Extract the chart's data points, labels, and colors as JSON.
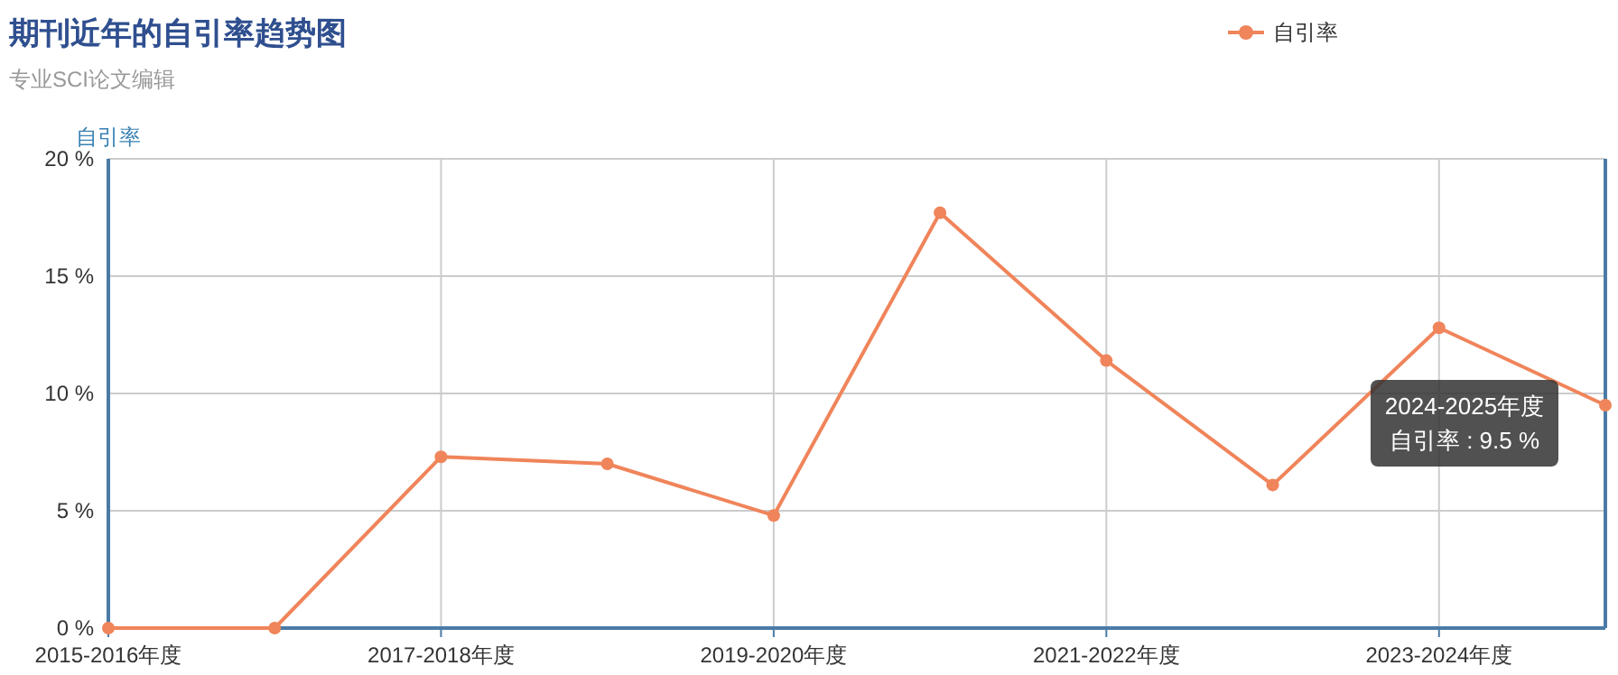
{
  "chart_data": {
    "type": "line",
    "title": "期刊近年的自引率趋势图",
    "subtitle": "专业SCI论文编辑",
    "ylabel": "自引率",
    "categories": [
      "2015-2016年度",
      null,
      "2017-2018年度",
      null,
      "2019-2020年度",
      null,
      "2021-2022年度",
      null,
      "2023-2024年度",
      null
    ],
    "series": [
      {
        "name": "自引率",
        "color": "#f0845a",
        "values": [
          0,
          0,
          7.3,
          7.0,
          4.8,
          17.7,
          11.4,
          6.1,
          12.8,
          9.5
        ]
      }
    ],
    "ylim": [
      0,
      20
    ],
    "yticks": [
      {
        "value": 0,
        "label": "0 %"
      },
      {
        "value": 5,
        "label": "5 %"
      },
      {
        "value": 10,
        "label": "10 %"
      },
      {
        "value": 15,
        "label": "15 %"
      },
      {
        "value": 20,
        "label": "20 %"
      }
    ],
    "grid": true,
    "legend": "top right",
    "marker": "circle",
    "line_style": "solid",
    "annotations": [
      "2024-2025年度",
      "自引率 : 9.5 %"
    ]
  }
}
